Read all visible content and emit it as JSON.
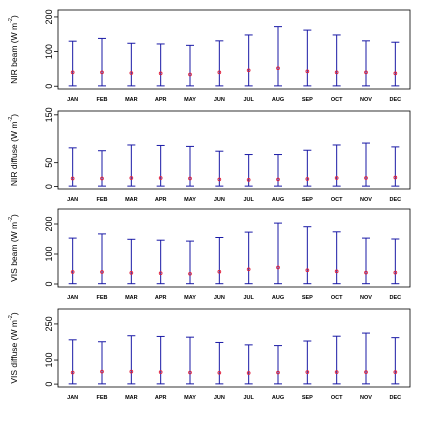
{
  "chart_data": [
    {
      "type": "errorbar",
      "ylabel": "NIR beam (W m",
      "ylabel_sup": "-2",
      "ylabel_close": ")",
      "categories": [
        "JAN",
        "FEB",
        "MAR",
        "APR",
        "MAY",
        "JUN",
        "JUL",
        "AUG",
        "SEP",
        "OCT",
        "NOV",
        "DEC"
      ],
      "mean": [
        40,
        40,
        38,
        37,
        34,
        40,
        46,
        52,
        43,
        40,
        40,
        37
      ],
      "upper": [
        130,
        138,
        124,
        122,
        118,
        131,
        148,
        172,
        162,
        148,
        131,
        127
      ],
      "lower": [
        1,
        1,
        1,
        1,
        1,
        1,
        1,
        1,
        1,
        1,
        1,
        1
      ],
      "yticks": [
        0,
        100,
        200
      ],
      "ylim": [
        -8,
        220
      ]
    },
    {
      "type": "errorbar",
      "ylabel": "NIR diffuse (W m",
      "ylabel_sup": "-2",
      "ylabel_close": ")",
      "categories": [
        "JAN",
        "FEB",
        "MAR",
        "APR",
        "MAY",
        "JUN",
        "JUL",
        "AUG",
        "SEP",
        "OCT",
        "NOV",
        "DEC"
      ],
      "mean": [
        17,
        17,
        18,
        18,
        17,
        15,
        14,
        15,
        16,
        18,
        18,
        19
      ],
      "upper": [
        81,
        75,
        87,
        86,
        84,
        74,
        67,
        67,
        76,
        87,
        91,
        83
      ],
      "lower": [
        1,
        1,
        1,
        1,
        1,
        1,
        1,
        1,
        1,
        1,
        1,
        1
      ],
      "yticks": [
        0,
        50,
        150
      ],
      "ylim": [
        -5,
        158
      ]
    },
    {
      "type": "errorbar",
      "ylabel": "VIS beam (W m",
      "ylabel_sup": "-2",
      "ylabel_close": ")",
      "categories": [
        "JAN",
        "FEB",
        "MAR",
        "APR",
        "MAY",
        "JUN",
        "JUL",
        "AUG",
        "SEP",
        "OCT",
        "NOV",
        "DEC"
      ],
      "mean": [
        40,
        40,
        37,
        36,
        34,
        41,
        49,
        55,
        46,
        42,
        38,
        38
      ],
      "upper": [
        153,
        167,
        149,
        146,
        143,
        155,
        173,
        203,
        191,
        174,
        153,
        150
      ],
      "lower": [
        1,
        1,
        1,
        1,
        1,
        1,
        1,
        1,
        1,
        1,
        1,
        1
      ],
      "yticks": [
        0,
        100,
        200
      ],
      "ylim": [
        -10,
        250
      ]
    },
    {
      "type": "errorbar",
      "ylabel": "VIS diffuse (W m",
      "ylabel_sup": "-2",
      "ylabel_close": ")",
      "categories": [
        "JAN",
        "FEB",
        "MAR",
        "APR",
        "MAY",
        "JUN",
        "JUL",
        "AUG",
        "SEP",
        "OCT",
        "NOV",
        "DEC"
      ],
      "mean": [
        48,
        52,
        52,
        50,
        48,
        47,
        46,
        48,
        50,
        50,
        50,
        50
      ],
      "upper": [
        184,
        176,
        201,
        198,
        195,
        173,
        163,
        160,
        179,
        199,
        212,
        193
      ],
      "lower": [
        1,
        1,
        1,
        1,
        1,
        1,
        1,
        1,
        1,
        1,
        1,
        1
      ],
      "yticks": [
        0,
        100,
        250
      ],
      "ylim": [
        -12,
        312
      ]
    }
  ],
  "colors": {
    "errorbar": "#1a1aa6",
    "mean_marker": "#e0203c",
    "axis": "#000000"
  }
}
